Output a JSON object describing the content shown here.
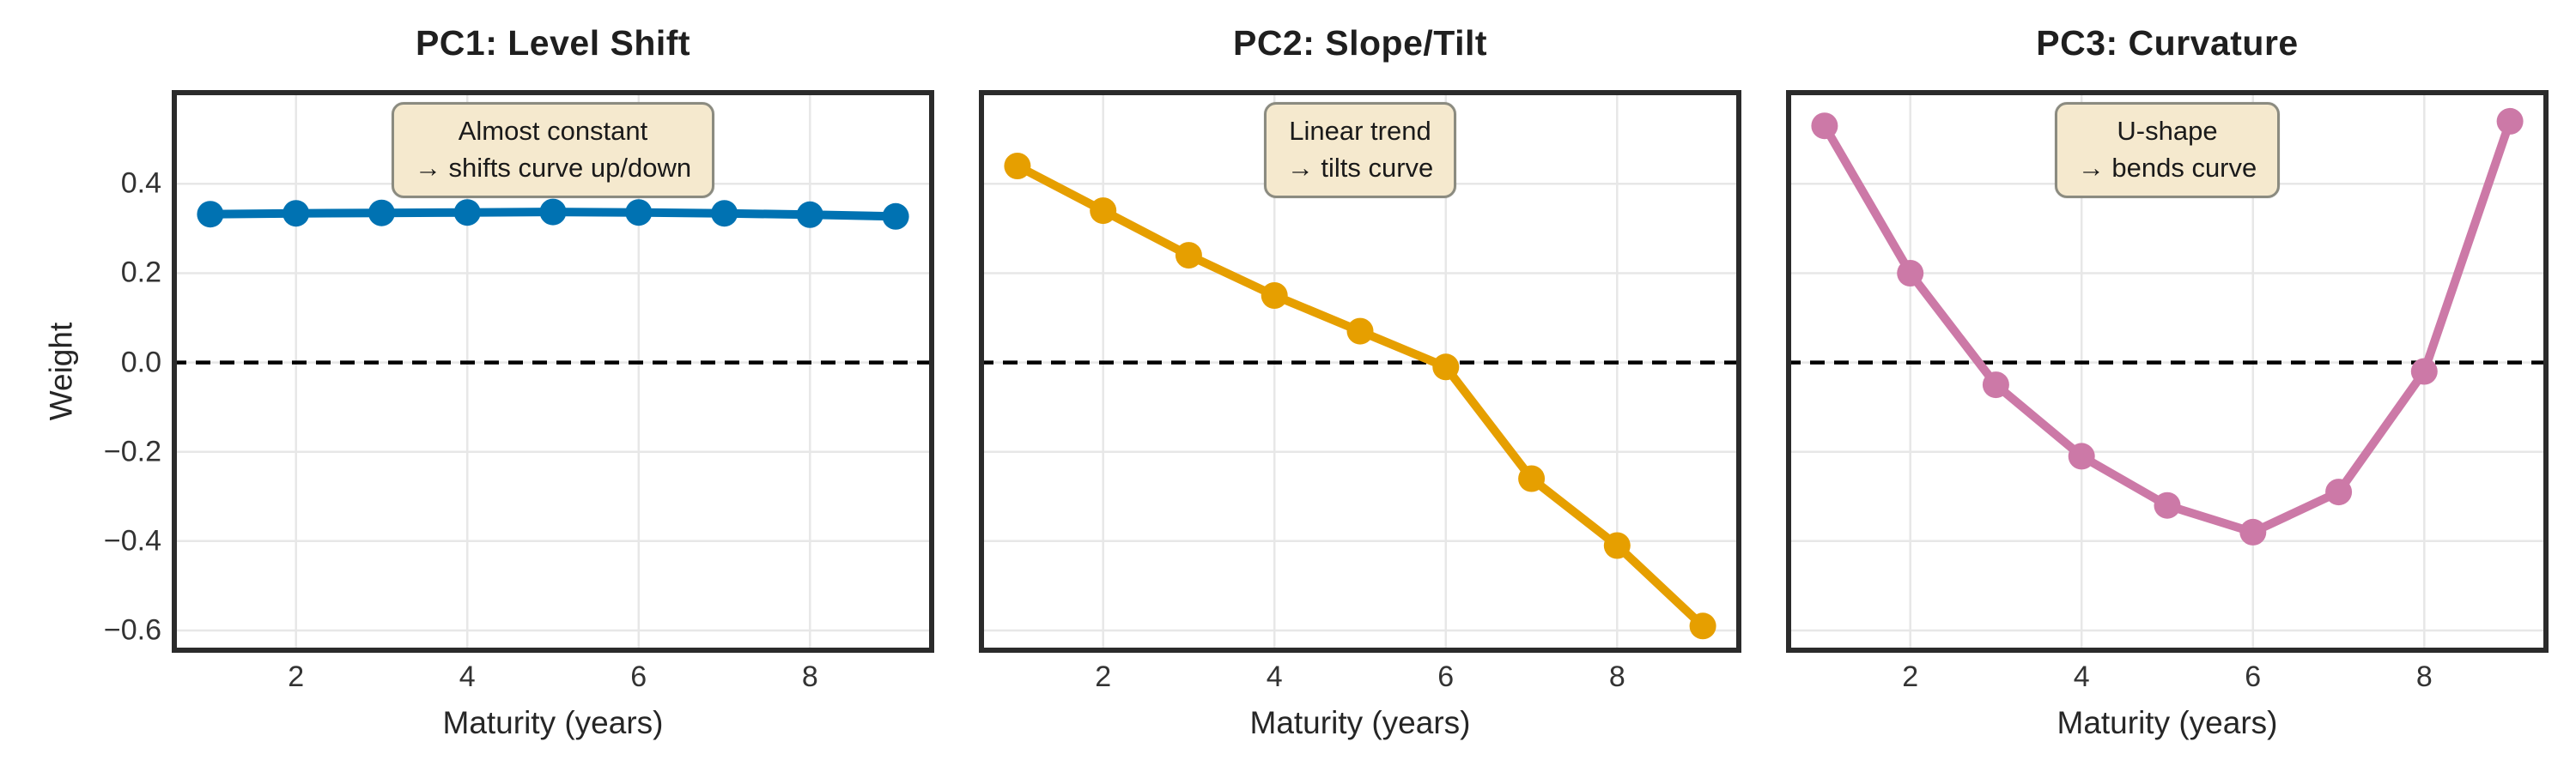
{
  "figure": {
    "background": "#ffffff"
  },
  "colors": {
    "pc1_line": "#0072B2",
    "pc2_line": "#E69F00",
    "pc3_line": "#CC79A7",
    "zero_line": "#000000",
    "grid": "#e7e7e7",
    "spine": "#2b2b2b",
    "annotation_bg": "#f5e9ce",
    "annotation_border": "#8b8b80",
    "title_text": "#1f1f1f",
    "tick_text": "#333333"
  },
  "chart_data": [
    {
      "type": "line",
      "title": "PC1: Level Shift",
      "series_name": "PC1",
      "color": "#0072B2",
      "x": [
        1,
        2,
        3,
        4,
        5,
        6,
        7,
        8,
        9
      ],
      "values": [
        0.332,
        0.334,
        0.335,
        0.336,
        0.337,
        0.336,
        0.334,
        0.331,
        0.327
      ],
      "annotation_lines": [
        "Almost constant",
        "→ shifts curve up/down"
      ],
      "xlabel": "Maturity (years)",
      "ylabel": "Weight",
      "xticks": [
        2,
        4,
        6,
        8
      ],
      "xtick_labels": [
        "2",
        "4",
        "6",
        "8"
      ],
      "yticks": [
        0.4,
        0.2,
        0,
        -0.2,
        -0.4,
        -0.6
      ],
      "ytick_labels": [
        "0.4",
        "0.2",
        "0.0",
        "−0.2",
        "−0.4",
        "−0.6"
      ],
      "xlim": [
        0.55,
        9.45
      ],
      "ylim": [
        -0.65,
        0.61
      ],
      "zero_line": true,
      "grid": true
    },
    {
      "type": "line",
      "title": "PC2: Slope/Tilt",
      "series_name": "PC2",
      "color": "#E69F00",
      "x": [
        1,
        2,
        3,
        4,
        5,
        6,
        7,
        8,
        9
      ],
      "values": [
        0.44,
        0.34,
        0.24,
        0.15,
        0.07,
        -0.01,
        -0.26,
        -0.41,
        -0.59
      ],
      "annotation_lines": [
        "Linear trend",
        "→ tilts curve"
      ],
      "xlabel": "Maturity (years)",
      "ylabel": "",
      "xticks": [
        2,
        4,
        6,
        8
      ],
      "xtick_labels": [
        "2",
        "4",
        "6",
        "8"
      ],
      "yticks": [
        0.4,
        0.2,
        0,
        -0.2,
        -0.4,
        -0.6
      ],
      "ytick_labels": [],
      "xlim": [
        0.55,
        9.45
      ],
      "ylim": [
        -0.65,
        0.61
      ],
      "zero_line": true,
      "grid": true
    },
    {
      "type": "line",
      "title": "PC3: Curvature",
      "series_name": "PC3",
      "color": "#CC79A7",
      "x": [
        1,
        2,
        3,
        4,
        5,
        6,
        7,
        8,
        9
      ],
      "values": [
        0.53,
        0.2,
        -0.05,
        -0.21,
        -0.32,
        -0.38,
        -0.29,
        -0.02,
        0.54
      ],
      "annotation_lines": [
        "U-shape",
        "→ bends curve"
      ],
      "xlabel": "Maturity (years)",
      "ylabel": "",
      "xticks": [
        2,
        4,
        6,
        8
      ],
      "xtick_labels": [
        "2",
        "4",
        "6",
        "8"
      ],
      "yticks": [
        0.4,
        0.2,
        0,
        -0.2,
        -0.4,
        -0.6
      ],
      "ytick_labels": [],
      "xlim": [
        0.55,
        9.45
      ],
      "ylim": [
        -0.65,
        0.61
      ],
      "zero_line": true,
      "grid": true
    }
  ]
}
